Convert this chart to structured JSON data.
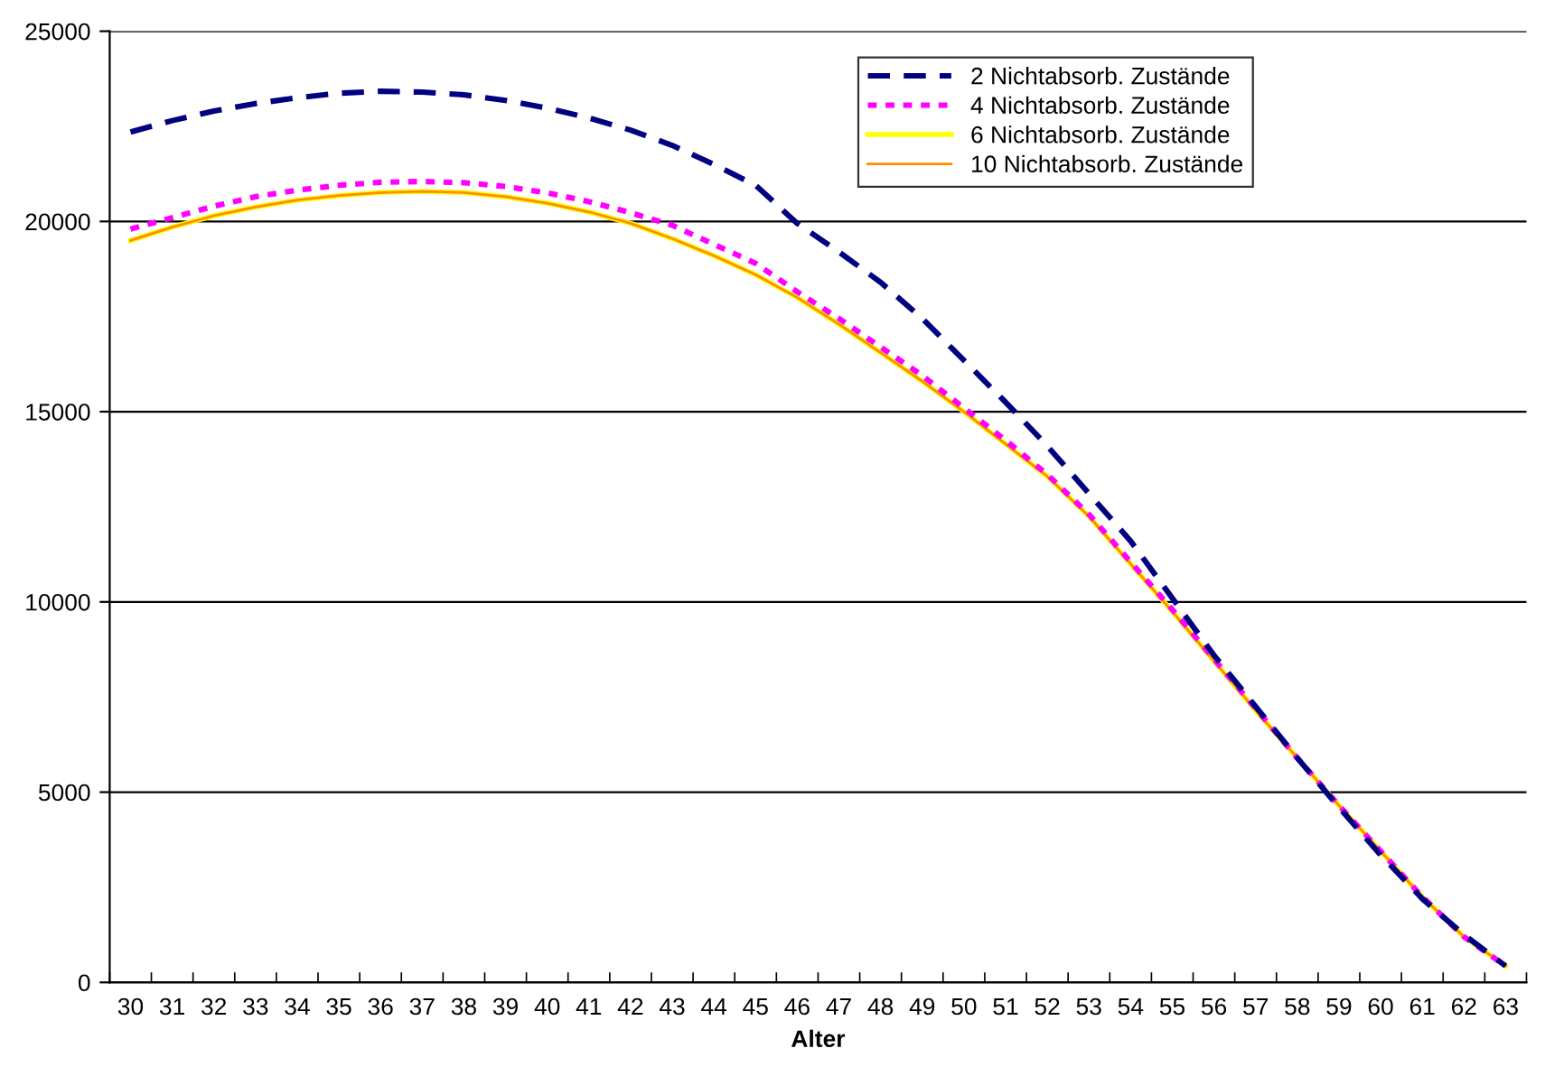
{
  "chart_data": {
    "type": "line",
    "xlabel": "Alter",
    "categories": [
      "30",
      "31",
      "32",
      "33",
      "34",
      "35",
      "36",
      "37",
      "38",
      "39",
      "40",
      "41",
      "42",
      "43",
      "44",
      "45",
      "46",
      "47",
      "48",
      "49",
      "50",
      "51",
      "52",
      "53",
      "54",
      "55",
      "56",
      "57",
      "58",
      "59",
      "60",
      "61",
      "62",
      "63"
    ],
    "ylim": [
      0,
      25000
    ],
    "yticks": [
      0,
      5000,
      10000,
      15000,
      20000,
      25000
    ],
    "grid": "y",
    "legend": "top right",
    "series": [
      {
        "name": "2 Nichtabsorb. Zustände",
        "color": "#000080",
        "line_style": "dashed",
        "values": [
          22350,
          22650,
          22900,
          23100,
          23250,
          23370,
          23420,
          23400,
          23330,
          23180,
          22980,
          22720,
          22400,
          22000,
          21500,
          20950,
          19950,
          19200,
          18400,
          17450,
          16350,
          15250,
          14100,
          12850,
          11600,
          10100,
          8600,
          7250,
          5900,
          4600,
          3350,
          2200,
          1250,
          430
        ]
      },
      {
        "name": "4 Nichtabsorb. Zustände",
        "color": "#ff00ff",
        "line_style": "dotted",
        "values": [
          19800,
          20100,
          20400,
          20650,
          20820,
          20950,
          21030,
          21050,
          21020,
          20920,
          20750,
          20520,
          20230,
          19900,
          19400,
          18900,
          18150,
          17450,
          16700,
          15950,
          15100,
          14250,
          13350,
          12300,
          11050,
          9800,
          8500,
          7200,
          5900,
          4650,
          3450,
          2250,
          1200,
          430
        ]
      },
      {
        "name": "6 Nichtabsorb. Zustände",
        "color": "#ffff00",
        "line_style": "solid",
        "values": [
          19500,
          19850,
          20150,
          20380,
          20560,
          20680,
          20760,
          20790,
          20760,
          20650,
          20480,
          20250,
          19950,
          19550,
          19100,
          18600,
          18000,
          17300,
          16550,
          15800,
          15000,
          14150,
          13300,
          12250,
          11000,
          9750,
          8450,
          7150,
          5900,
          4650,
          3450,
          2250,
          1200,
          430
        ]
      },
      {
        "name": "10 Nichtabsorb. Zustände",
        "color": "#ff8c00",
        "line_style": "solid",
        "values": [
          19500,
          19850,
          20150,
          20380,
          20560,
          20680,
          20760,
          20790,
          20760,
          20650,
          20480,
          20250,
          19950,
          19550,
          19100,
          18600,
          18000,
          17300,
          16550,
          15800,
          15000,
          14150,
          13300,
          12250,
          11000,
          9750,
          8450,
          7150,
          5900,
          4650,
          3450,
          2250,
          1200,
          430
        ]
      }
    ]
  }
}
